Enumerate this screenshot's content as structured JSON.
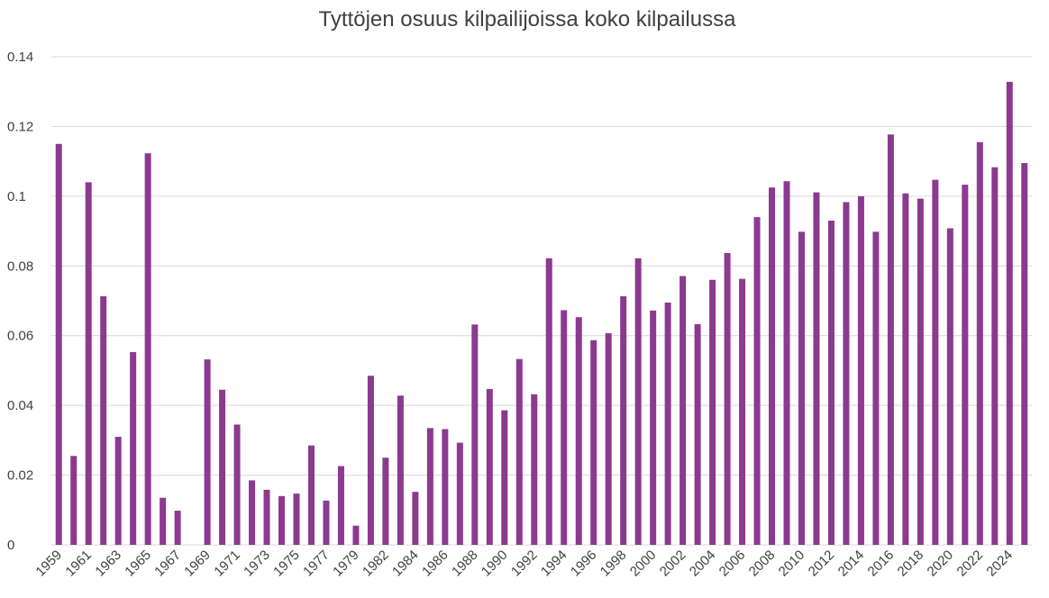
{
  "chart_data": {
    "type": "bar",
    "title": "Tyttöjen osuus kilpailijoissa koko kilpailussa",
    "xlabel": "",
    "ylabel": "",
    "ylim": [
      0,
      0.14
    ],
    "yticks": [
      "0",
      "0.02",
      "0.04",
      "0.06",
      "0.08",
      "0.1",
      "0.12",
      "0.14"
    ],
    "grid": true,
    "bar_color": "#8b3a8f",
    "categories": [
      "1959",
      "1960",
      "1961",
      "1962",
      "1963",
      "1964",
      "1965",
      "1966",
      "1967",
      "1968",
      "1969",
      "1970",
      "1971",
      "1972",
      "1973",
      "1974",
      "1975",
      "1976",
      "1977",
      "1978",
      "1979",
      "1981",
      "1982",
      "1983",
      "1984",
      "1985",
      "1986",
      "1987",
      "1988",
      "1989",
      "1990",
      "1991",
      "1992",
      "1993",
      "1994",
      "1995",
      "1996",
      "1997",
      "1998",
      "1999",
      "2000",
      "2001",
      "2002",
      "2003",
      "2004",
      "2005",
      "2006",
      "2007",
      "2008",
      "2009",
      "2010",
      "2011",
      "2012",
      "2013",
      "2014",
      "2015",
      "2016",
      "2017",
      "2018",
      "2019",
      "2020",
      "2021",
      "2022",
      "2023",
      "2024",
      "2025"
    ],
    "xtick_labels": [
      "1959",
      "1961",
      "1963",
      "1965",
      "1967",
      "1969",
      "1971",
      "1973",
      "1975",
      "1977",
      "1979",
      "1982",
      "1984",
      "1986",
      "1988",
      "1990",
      "1992",
      "1994",
      "1996",
      "1998",
      "2000",
      "2002",
      "2004",
      "2006",
      "2008",
      "2010",
      "2012",
      "2014",
      "2016",
      "2018",
      "2020",
      "2022",
      "2024"
    ],
    "values": [
      0.115,
      0.0255,
      0.104,
      0.0713,
      0.031,
      0.0553,
      0.1123,
      0.0135,
      0.0098,
      0,
      0.0532,
      0.0445,
      0.0345,
      0.0185,
      0.0158,
      0.014,
      0.0147,
      0.0285,
      0.0127,
      0.0226,
      0.0055,
      0.0485,
      0.025,
      0.0428,
      0.0152,
      0.0335,
      0.0332,
      0.0293,
      0.0632,
      0.0447,
      0.0386,
      0.0533,
      0.0432,
      0.0822,
      0.0673,
      0.0653,
      0.0587,
      0.0607,
      0.0713,
      0.0822,
      0.0672,
      0.0695,
      0.0771,
      0.0633,
      0.076,
      0.0837,
      0.0763,
      0.094,
      0.1025,
      0.1043,
      0.0898,
      0.1011,
      0.093,
      0.0983,
      0.1,
      0.0898,
      0.1177,
      0.1008,
      0.0993,
      0.1047,
      0.0908,
      0.1033,
      0.1155,
      0.1083,
      0.1328,
      0.1095
    ]
  }
}
